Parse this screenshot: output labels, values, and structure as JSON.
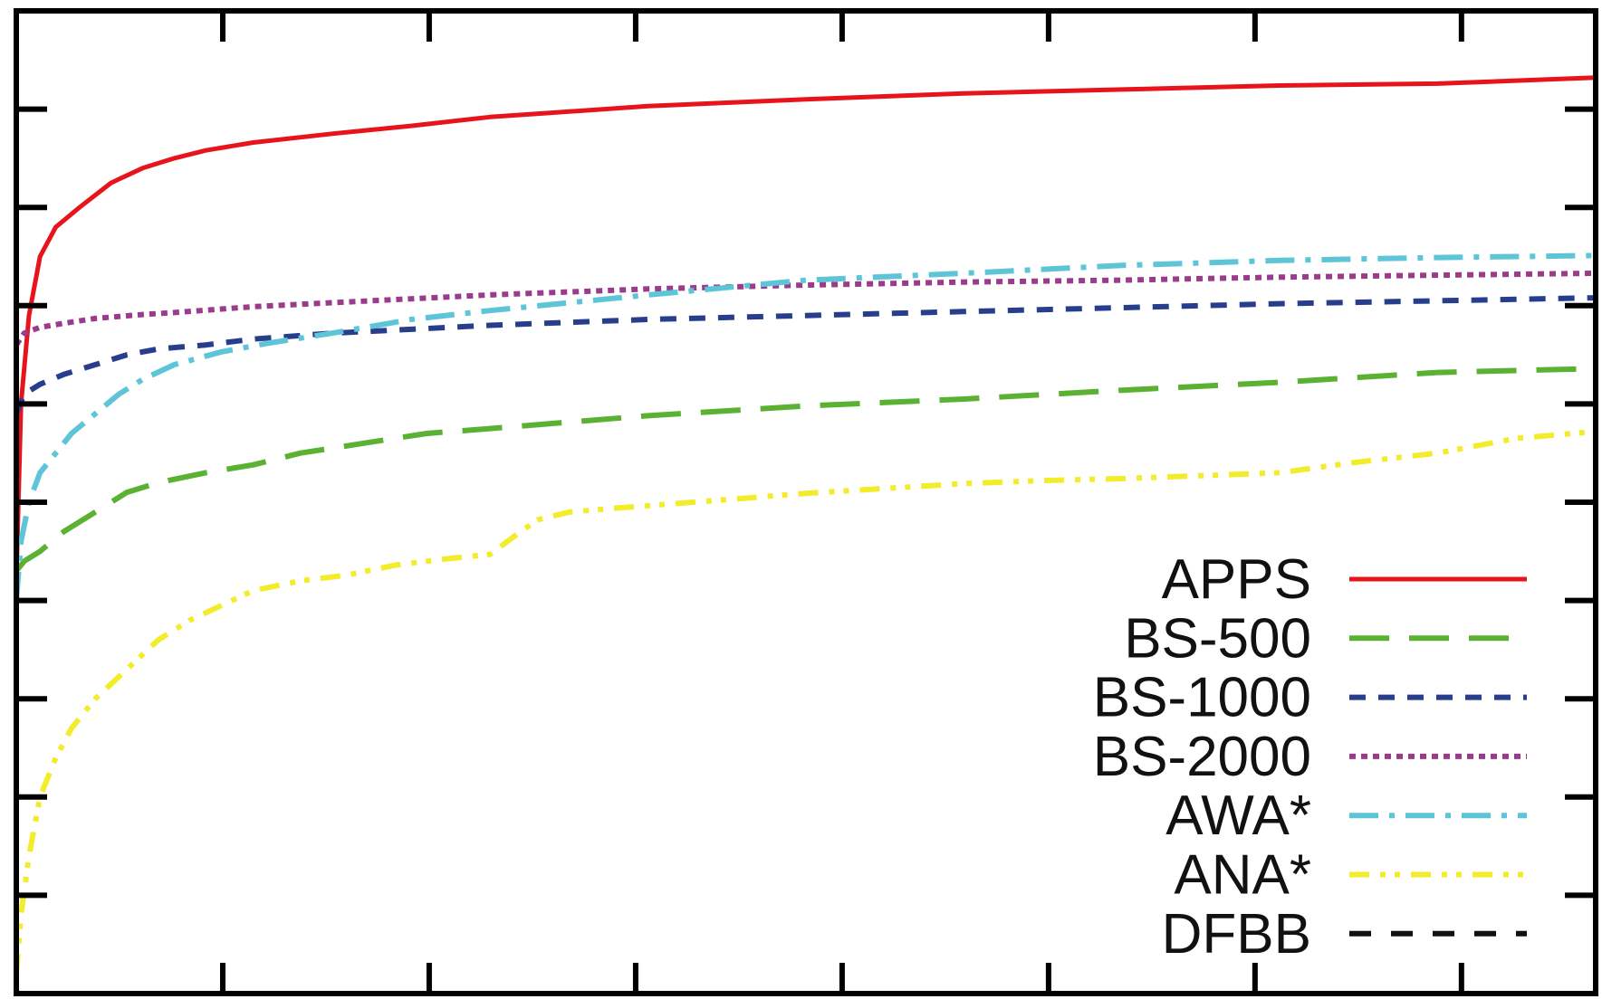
{
  "chart_data": {
    "type": "line",
    "title": "",
    "xlabel": "",
    "ylabel": "",
    "xlim": [
      0,
      100
    ],
    "ylim": [
      0,
      100
    ],
    "grid": false,
    "legend_position": "bottom-right",
    "series": [
      {
        "name": "APPS",
        "color": "#e8141c",
        "dash": "solid",
        "x": [
          0,
          0.3,
          0.8,
          1.5,
          2.5,
          4,
          6,
          8,
          10,
          12,
          15,
          20,
          25,
          30,
          40,
          50,
          60,
          70,
          80,
          90,
          100
        ],
        "y": [
          42,
          60,
          69,
          75,
          78,
          80,
          82.5,
          84,
          85,
          85.8,
          86.6,
          87.5,
          88.3,
          89.2,
          90.3,
          91,
          91.6,
          92,
          92.4,
          92.6,
          93.2
        ]
      },
      {
        "name": "BS-500",
        "color": "#5bb131",
        "dash": "long-dash",
        "x": [
          0,
          0.5,
          1.5,
          3,
          5,
          7,
          9,
          12,
          15,
          18,
          22,
          26,
          30,
          40,
          50,
          60,
          70,
          80,
          90,
          100
        ],
        "y": [
          43,
          44,
          45,
          47,
          49,
          51,
          52,
          53,
          53.8,
          55,
          56,
          57,
          57.5,
          58.8,
          59.8,
          60.5,
          61.4,
          62.2,
          63.2,
          63.6
        ]
      },
      {
        "name": "BS-1000",
        "color": "#283d8c",
        "dash": "short-dash",
        "x": [
          0,
          0.5,
          1.5,
          3,
          5,
          7,
          9,
          12,
          15,
          20,
          25,
          30,
          40,
          50,
          60,
          70,
          80,
          90,
          100
        ],
        "y": [
          59,
          61,
          62,
          63,
          64,
          65,
          65.6,
          66,
          66.6,
          67.2,
          67.6,
          68,
          68.6,
          69,
          69.4,
          69.8,
          70.2,
          70.5,
          70.8
        ]
      },
      {
        "name": "BS-2000",
        "color": "#9a3b8c",
        "dash": "dotted",
        "x": [
          0,
          0.5,
          1.5,
          3,
          5,
          8,
          10,
          15,
          20,
          25,
          30,
          40,
          50,
          60,
          70,
          80,
          90,
          100
        ],
        "y": [
          66,
          67.2,
          67.8,
          68.2,
          68.7,
          69.1,
          69.3,
          69.9,
          70.3,
          70.7,
          71.1,
          71.7,
          72.1,
          72.4,
          72.6,
          72.9,
          73.1,
          73.3
        ]
      },
      {
        "name": "AWA*",
        "color": "#5ec4d8",
        "dash": "dash-dot",
        "x": [
          0,
          0.3,
          0.8,
          1.5,
          2.5,
          3.5,
          5,
          6.5,
          8,
          10,
          13,
          16,
          20,
          25,
          30,
          40,
          50,
          60,
          70,
          80,
          90,
          100
        ],
        "y": [
          40,
          46,
          50,
          53,
          55,
          57,
          59,
          61,
          62.5,
          64,
          65.3,
          66.2,
          67.2,
          68.6,
          69.5,
          71.1,
          72.6,
          73.3,
          74.1,
          74.6,
          74.9,
          75.1
        ]
      },
      {
        "name": "ANA*",
        "color": "#f2ec2a",
        "dash": "dash-dot-dot",
        "x": [
          0,
          0.3,
          0.8,
          1.5,
          2.5,
          3.5,
          5,
          7,
          9,
          11,
          13,
          15,
          18,
          21,
          24,
          27,
          30,
          31.5,
          33,
          35,
          38,
          42,
          46,
          50,
          55,
          60,
          65,
          70,
          75,
          80,
          85,
          90,
          95,
          100
        ],
        "y": [
          2,
          8,
          14,
          20,
          24,
          27,
          30,
          33,
          36,
          38,
          39.5,
          41,
          42,
          42.6,
          43.6,
          44.2,
          44.7,
          46.5,
          48.2,
          49,
          49.4,
          49.9,
          50.4,
          50.9,
          51.4,
          51.9,
          52.2,
          52.4,
          52.7,
          53,
          54.1,
          55,
          56.5,
          57.2
        ]
      },
      {
        "name": "DFBB",
        "color": "#111111",
        "dash": "sparse-dash",
        "x": [],
        "y": []
      }
    ]
  }
}
